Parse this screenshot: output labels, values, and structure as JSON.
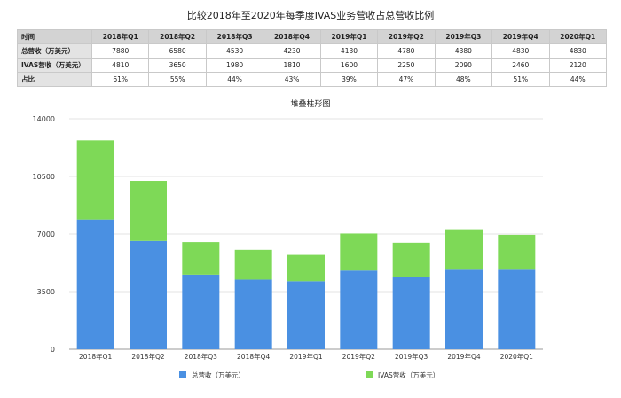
{
  "page": {
    "title": "比较2018年至2020年每季度IVAS业务营收占总营收比例"
  },
  "table": {
    "header": [
      "时间",
      "2018年Q1",
      "2018年Q2",
      "2018年Q3",
      "2018年Q4",
      "2019年Q1",
      "2019年Q2",
      "2019年Q3",
      "2019年Q4",
      "2020年Q1"
    ],
    "rows": [
      [
        "总营收（万美元）",
        "7880",
        "6580",
        "4530",
        "4230",
        "4130",
        "4780",
        "4380",
        "4830",
        "4830"
      ],
      [
        "IVAS营收（万美元）",
        "4810",
        "3650",
        "1980",
        "1810",
        "1600",
        "2250",
        "2090",
        "2460",
        "2120"
      ],
      [
        "占比",
        "61%",
        "55%",
        "44%",
        "43%",
        "39%",
        "47%",
        "48%",
        "51%",
        "44%"
      ]
    ]
  },
  "chart_data": {
    "type": "bar",
    "stacked": true,
    "title": "堆叠柱形图",
    "categories": [
      "2018年Q1",
      "2018年Q2",
      "2018年Q3",
      "2018年Q4",
      "2019年Q1",
      "2019年Q2",
      "2019年Q3",
      "2019年Q4",
      "2020年Q1"
    ],
    "series": [
      {
        "name": "总营收（万美元）",
        "color": "#4a90e2",
        "values": [
          7880,
          6580,
          4530,
          4230,
          4130,
          4780,
          4380,
          4830,
          4830
        ]
      },
      {
        "name": "IVAS营收（万美元）",
        "color": "#7ed957",
        "values": [
          4810,
          3650,
          1980,
          1810,
          1600,
          2250,
          2090,
          2460,
          2120
        ]
      }
    ],
    "ylim": [
      0,
      14000
    ],
    "yticks": [
      0,
      3500,
      7000,
      10500,
      14000
    ],
    "ytick_labels": [
      "0",
      "3500",
      "7000",
      "10500",
      "14000"
    ],
    "grid": true,
    "legend_position": "bottom"
  }
}
